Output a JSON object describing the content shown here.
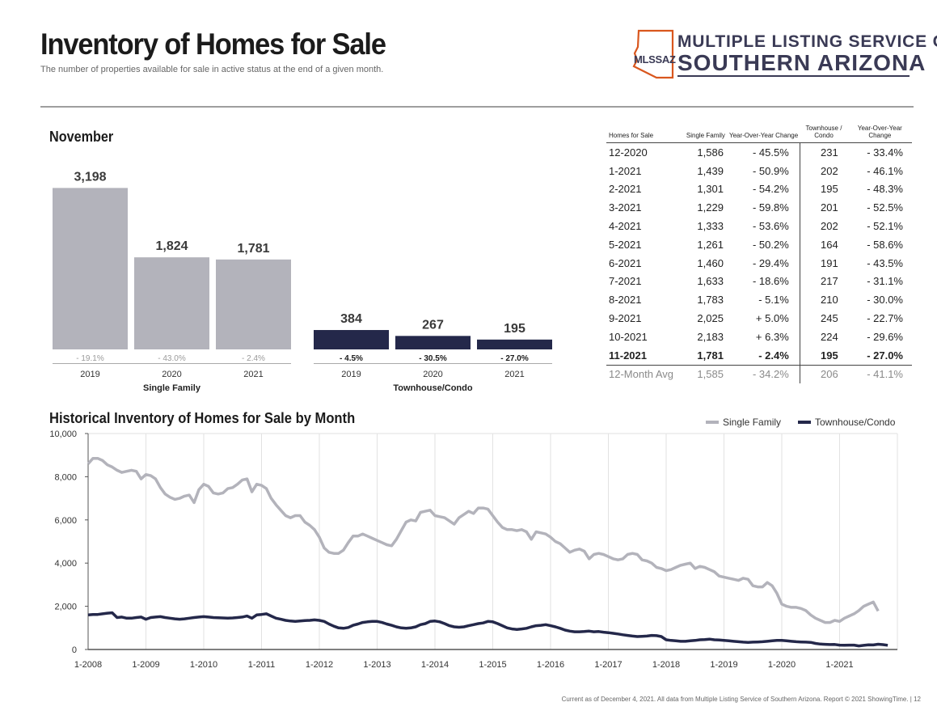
{
  "header": {
    "title": "Inventory of Homes for Sale",
    "subtitle": "The number of properties available for sale in active status at the end of a given month."
  },
  "logo": {
    "line1": "MULTIPLE LISTING SERVICE OF",
    "line2": "SOUTHERN ARIZONA",
    "abbr": "MLSSAZ"
  },
  "bar_section": {
    "title": "November"
  },
  "table": {
    "headers": [
      "Homes for Sale",
      "Single Family",
      "Year-Over-Year Change",
      "Townhouse / Condo",
      "Year-Over-Year Change"
    ],
    "rows": [
      [
        "12-2020",
        "1,586",
        "- 45.5%",
        "231",
        "- 33.4%"
      ],
      [
        "1-2021",
        "1,439",
        "- 50.9%",
        "202",
        "- 46.1%"
      ],
      [
        "2-2021",
        "1,301",
        "- 54.2%",
        "195",
        "- 48.3%"
      ],
      [
        "3-2021",
        "1,229",
        "- 59.8%",
        "201",
        "- 52.5%"
      ],
      [
        "4-2021",
        "1,333",
        "- 53.6%",
        "202",
        "- 52.1%"
      ],
      [
        "5-2021",
        "1,261",
        "- 50.2%",
        "164",
        "- 58.6%"
      ],
      [
        "6-2021",
        "1,460",
        "- 29.4%",
        "191",
        "- 43.5%"
      ],
      [
        "7-2021",
        "1,633",
        "- 18.6%",
        "217",
        "- 31.1%"
      ],
      [
        "8-2021",
        "1,783",
        "- 5.1%",
        "210",
        "- 30.0%"
      ],
      [
        "9-2021",
        "2,025",
        "+ 5.0%",
        "245",
        "- 22.7%"
      ],
      [
        "10-2021",
        "2,183",
        "+ 6.3%",
        "224",
        "- 29.6%"
      ],
      [
        "11-2021",
        "1,781",
        "- 2.4%",
        "195",
        "- 27.0%"
      ]
    ],
    "avg_row": [
      "12-Month Avg",
      "1,585",
      "- 34.2%",
      "206",
      "- 41.1%"
    ]
  },
  "history_title": "Historical Inventory of Homes for Sale by Month",
  "footer": "Current as of December 4, 2021. All data from Multiple Listing Service of Southern Arizona. Report © 2021 ShowingTime.  |  12",
  "colors": {
    "single_family": "#b3b3bb",
    "townhouse": "#24284a",
    "navy_text": "#3a3a55",
    "logo_orange": "#d9571e"
  },
  "chart_data": [
    {
      "type": "bar",
      "groups": [
        {
          "name": "Single Family",
          "categories": [
            "2019",
            "2020",
            "2021"
          ],
          "values": [
            3198,
            1824,
            1781
          ],
          "value_labels": [
            "3,198",
            "1,824",
            "1,781"
          ],
          "changes": [
            "- 19.1%",
            "- 43.0%",
            "- 2.4%"
          ],
          "color": "#b3b3bb"
        },
        {
          "name": "Townhouse/Condo",
          "categories": [
            "2019",
            "2020",
            "2021"
          ],
          "values": [
            384,
            267,
            195
          ],
          "value_labels": [
            "384",
            "267",
            "195"
          ],
          "changes": [
            "- 4.5%",
            "- 30.5%",
            "- 27.0%"
          ],
          "color": "#24284a"
        }
      ],
      "ylim": [
        0,
        3300
      ]
    },
    {
      "type": "line",
      "title": "Historical Inventory of Homes for Sale by Month",
      "x_start": "1-2008",
      "x_end": "11-2021",
      "xticks": [
        "1-2008",
        "1-2009",
        "1-2010",
        "1-2011",
        "1-2012",
        "1-2013",
        "1-2014",
        "1-2015",
        "1-2016",
        "1-2017",
        "1-2018",
        "1-2019",
        "1-2020",
        "1-2021"
      ],
      "ylim": [
        0,
        10000
      ],
      "yticks": [
        0,
        2000,
        4000,
        6000,
        8000,
        10000
      ],
      "ytick_labels": [
        "0",
        "2,000",
        "4,000",
        "6,000",
        "8,000",
        "10,000"
      ],
      "grid": "vertical",
      "legend_position": "top-right",
      "series": [
        {
          "name": "Single Family",
          "color": "#b3b3bb",
          "values": [
            8600,
            8850,
            8850,
            8750,
            8550,
            8450,
            8300,
            8200,
            8250,
            8300,
            8250,
            7900,
            8100,
            8050,
            7900,
            7500,
            7200,
            7050,
            6950,
            7000,
            7100,
            7150,
            6800,
            7400,
            7650,
            7550,
            7250,
            7200,
            7250,
            7450,
            7500,
            7650,
            7850,
            7900,
            7300,
            7650,
            7600,
            7450,
            7000,
            6700,
            6450,
            6200,
            6100,
            6200,
            6200,
            5900,
            5750,
            5550,
            5200,
            4700,
            4500,
            4450,
            4450,
            4600,
            4950,
            5250,
            5250,
            5350,
            5250,
            5150,
            5050,
            4950,
            4850,
            4800,
            5100,
            5500,
            5900,
            6000,
            5950,
            6350,
            6400,
            6450,
            6200,
            6150,
            6100,
            5950,
            5800,
            6100,
            6250,
            6400,
            6300,
            6550,
            6550,
            6500,
            6200,
            5900,
            5650,
            5550,
            5550,
            5500,
            5550,
            5450,
            5100,
            5450,
            5400,
            5350,
            5200,
            5000,
            4900,
            4700,
            4500,
            4600,
            4650,
            4550,
            4200,
            4400,
            4450,
            4400,
            4300,
            4200,
            4150,
            4200,
            4400,
            4450,
            4400,
            4150,
            4100,
            4000,
            3800,
            3750,
            3650,
            3700,
            3800,
            3900,
            3950,
            4000,
            3750,
            3850,
            3800,
            3700,
            3600,
            3400,
            3350,
            3300,
            3250,
            3200,
            3300,
            3250,
            2950,
            2900,
            2900,
            3100,
            2950,
            2600,
            2100,
            2000,
            1950,
            1950,
            1900,
            1800,
            1600,
            1450,
            1350,
            1250,
            1250,
            1350,
            1300,
            1450,
            1550,
            1650,
            1800,
            2000,
            2100,
            2200,
            1781
          ]
        },
        {
          "name": "Townhouse/Condo",
          "color": "#24284a",
          "values": [
            1600,
            1620,
            1620,
            1650,
            1680,
            1700,
            1480,
            1500,
            1450,
            1450,
            1480,
            1500,
            1400,
            1480,
            1500,
            1520,
            1480,
            1450,
            1420,
            1400,
            1420,
            1450,
            1480,
            1500,
            1520,
            1500,
            1480,
            1470,
            1460,
            1450,
            1460,
            1480,
            1500,
            1550,
            1450,
            1600,
            1620,
            1650,
            1550,
            1450,
            1400,
            1350,
            1320,
            1300,
            1320,
            1340,
            1350,
            1370,
            1350,
            1300,
            1180,
            1080,
            1000,
            980,
            1020,
            1120,
            1180,
            1250,
            1280,
            1300,
            1300,
            1250,
            1180,
            1120,
            1050,
            1000,
            980,
            1000,
            1050,
            1150,
            1200,
            1300,
            1320,
            1280,
            1200,
            1100,
            1050,
            1030,
            1050,
            1100,
            1150,
            1200,
            1230,
            1300,
            1280,
            1200,
            1100,
            1000,
            950,
            930,
            950,
            980,
            1050,
            1100,
            1120,
            1150,
            1100,
            1050,
            980,
            900,
            850,
            820,
            820,
            830,
            850,
            820,
            830,
            800,
            780,
            750,
            720,
            680,
            650,
            620,
            600,
            610,
            620,
            650,
            640,
            600,
            450,
            420,
            400,
            380,
            380,
            400,
            420,
            450,
            460,
            480,
            450,
            440,
            420,
            400,
            380,
            360,
            340,
            330,
            340,
            350,
            360,
            380,
            400,
            420,
            420,
            400,
            380,
            360,
            350,
            340,
            330,
            280,
            250,
            240,
            230,
            231,
            202,
            195,
            201,
            202,
            164,
            191,
            217,
            210,
            245,
            224,
            195
          ]
        }
      ]
    }
  ]
}
